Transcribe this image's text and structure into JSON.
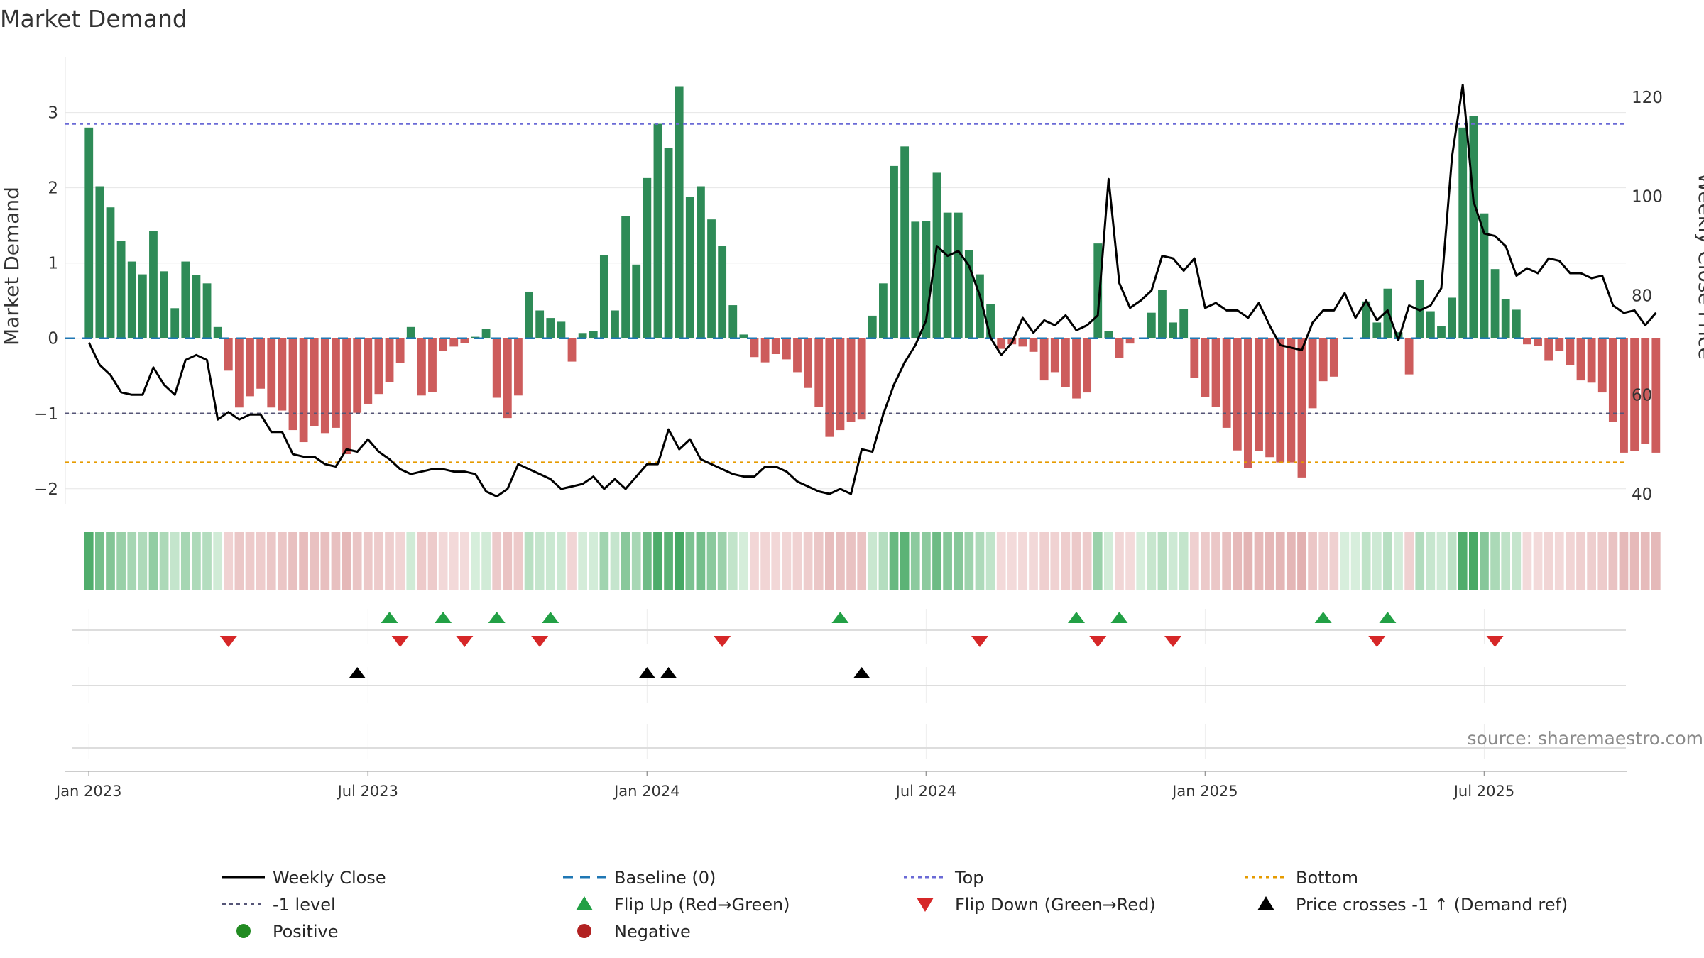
{
  "chart_data": {
    "type": "bar",
    "title": "Market Demand",
    "ylabel": "Market Demand",
    "y2label": "Weekly Close Price",
    "ylim": [
      -2.2,
      3.6
    ],
    "y2lim": [
      38,
      126
    ],
    "yticks": [
      -2,
      -1,
      0,
      1,
      2,
      3
    ],
    "ytick_labels": [
      "−2",
      "−1",
      "0",
      "1",
      "2",
      "3"
    ],
    "y2ticks": [
      40,
      60,
      80,
      100,
      120
    ],
    "y2tick_labels": [
      "40",
      "60",
      "80",
      "100",
      "120"
    ],
    "xlim": [
      -2.2,
      143.2
    ],
    "xtick_weeks": [
      0,
      26,
      52,
      78,
      104,
      130
    ],
    "xtick_labels": [
      "Jan 2023",
      "Jul 2023",
      "Jan 2024",
      "Jul 2024",
      "Jan 2025",
      "Jul 2025"
    ],
    "reference_lines": {
      "top": 2.85,
      "neg_one": -1.0,
      "bottom": -1.65,
      "baseline": 0
    },
    "demand": [
      2.8,
      2.02,
      1.74,
      1.29,
      1.02,
      0.85,
      1.43,
      0.89,
      0.4,
      1.02,
      0.84,
      0.73,
      0.15,
      -0.43,
      -0.92,
      -0.77,
      -0.67,
      -0.92,
      -0.96,
      -1.22,
      -1.38,
      -1.17,
      -1.26,
      -1.19,
      -1.54,
      -0.99,
      -0.87,
      -0.74,
      -0.58,
      -0.33,
      0.15,
      -0.76,
      -0.71,
      -0.17,
      -0.11,
      -0.06,
      0.02,
      0.12,
      -0.79,
      -1.06,
      -0.76,
      0.62,
      0.37,
      0.27,
      0.22,
      -0.31,
      0.07,
      0.1,
      1.11,
      0.37,
      1.62,
      0.98,
      2.13,
      2.85,
      2.53,
      3.35,
      1.88,
      2.02,
      1.58,
      1.23,
      0.44,
      0.05,
      -0.25,
      -0.32,
      -0.21,
      -0.28,
      -0.45,
      -0.66,
      -0.91,
      -1.31,
      -1.22,
      -1.11,
      -1.08,
      0.3,
      0.73,
      2.29,
      2.55,
      1.55,
      1.56,
      2.2,
      1.67,
      1.67,
      1.17,
      0.85,
      0.45,
      -0.14,
      -0.08,
      -0.11,
      -0.18,
      -0.56,
      -0.45,
      -0.65,
      -0.8,
      -0.72,
      1.26,
      0.1,
      -0.26,
      -0.07,
      0.0,
      0.34,
      0.64,
      0.21,
      0.39,
      -0.53,
      -0.78,
      -0.91,
      -1.19,
      -1.49,
      -1.72,
      -1.5,
      -1.58,
      -1.65,
      -1.65,
      -1.85,
      -0.93,
      -0.57,
      -0.51,
      0.0,
      0.0,
      0.49,
      0.21,
      0.66,
      0.08,
      -0.48,
      0.78,
      0.36,
      0.16,
      0.54,
      2.8,
      2.95,
      1.66,
      0.92,
      0.52,
      0.38,
      -0.08,
      -0.1,
      -0.3,
      -0.17,
      -0.36,
      -0.56,
      -0.59,
      -0.72,
      -1.11,
      -1.52,
      -1.5,
      -1.4,
      -1.52
    ],
    "price": [
      70.5,
      66,
      64,
      60.5,
      60,
      60,
      65.5,
      62,
      60,
      67,
      68,
      67,
      55,
      56.5,
      55,
      56,
      56,
      52.5,
      52.5,
      48,
      47.5,
      47.5,
      46,
      45.5,
      49,
      48.5,
      51,
      48.5,
      47,
      45,
      44,
      44.5,
      45,
      45,
      44.5,
      44.5,
      44,
      40.5,
      39.5,
      41,
      46,
      45,
      44,
      43,
      41,
      41.5,
      42,
      43.5,
      41,
      43,
      41,
      43.5,
      46,
      46,
      53,
      49,
      51,
      47,
      46,
      45,
      44,
      43.5,
      43.5,
      45.5,
      45.5,
      44.5,
      42.5,
      41.5,
      40.5,
      40,
      41,
      40,
      49,
      48.5,
      56,
      62,
      66.5,
      70,
      75,
      90,
      88,
      89,
      86,
      80,
      71.5,
      68,
      70.5,
      75.5,
      72.5,
      75,
      74,
      76,
      73,
      74,
      76,
      103.5,
      82.5,
      77.5,
      79,
      81,
      88,
      87.5,
      85,
      87.5,
      77.5,
      78.5,
      77,
      77,
      75.5,
      78.5,
      74,
      70,
      69.5,
      69,
      74.5,
      77,
      77,
      80.5,
      75.5,
      79,
      75,
      77,
      71,
      78,
      77,
      78,
      81.5,
      108,
      122.5,
      99,
      92.5,
      92,
      90,
      84,
      85.5,
      84.5,
      87.5,
      87,
      84.5,
      84.5,
      83.5,
      84,
      78,
      76.5,
      77,
      74,
      76.5
    ],
    "heat_strip": "weekly demand colored green (positive) / red (negative), intensity by magnitude",
    "flip_up_weeks": [
      28,
      33,
      38,
      43,
      70,
      92,
      96,
      115,
      121
    ],
    "flip_down_weeks": [
      13,
      29,
      35,
      42,
      59,
      83,
      94,
      101,
      120,
      131
    ],
    "price_cross_weeks": [
      25,
      52,
      54,
      72
    ],
    "colors": {
      "positive_bar": "#2e8b57",
      "negative_bar": "#cd5c5c",
      "price_line": "#000000",
      "baseline": "#1f77b4",
      "top_line": "#6a6ad6",
      "neg_one_line": "#555577",
      "bottom_line": "#e69b00",
      "flip_up": "#22a045",
      "flip_down": "#d62728",
      "cross": "#000000",
      "grid": "#e6e6e6"
    }
  },
  "source": "source: sharemaestro.com",
  "legend": [
    {
      "key": "weekly-close",
      "label": "Weekly Close"
    },
    {
      "key": "baseline",
      "label": "Baseline (0)"
    },
    {
      "key": "top",
      "label": "Top"
    },
    {
      "key": "bottom",
      "label": "Bottom"
    },
    {
      "key": "neg-one",
      "label": "-1 level"
    },
    {
      "key": "flip-up",
      "label": "Flip Up (Red→Green)"
    },
    {
      "key": "flip-down",
      "label": "Flip Down (Green→Red)"
    },
    {
      "key": "price-cross",
      "label": "Price crosses -1 ↑ (Demand ref)"
    },
    {
      "key": "positive",
      "label": "Positive"
    },
    {
      "key": "negative",
      "label": "Negative"
    }
  ]
}
